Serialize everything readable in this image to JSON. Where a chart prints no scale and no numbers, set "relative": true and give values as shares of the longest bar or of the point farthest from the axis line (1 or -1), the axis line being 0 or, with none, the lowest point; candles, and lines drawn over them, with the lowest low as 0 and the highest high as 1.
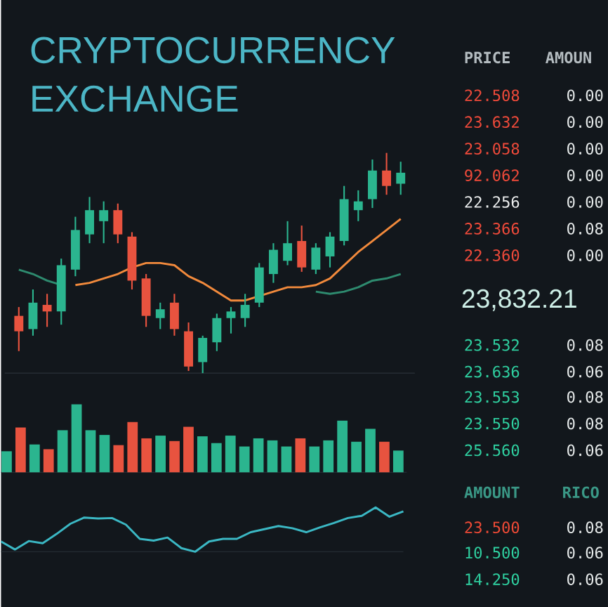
{
  "chart_data": [
    {
      "type": "candlestick",
      "title": "CRYPTOCURRENCY EXCHANGE",
      "relative": true,
      "categories": [
        null,
        null,
        null,
        null,
        null,
        null,
        null,
        null,
        null,
        null,
        null,
        null,
        null,
        null,
        null,
        null,
        null,
        null,
        null,
        null,
        null,
        null,
        null,
        null,
        null,
        null,
        null,
        null
      ],
      "ohlc": [
        [
          0.26,
          0.3,
          0.1,
          0.19
        ],
        [
          0.2,
          0.38,
          0.17,
          0.32
        ],
        [
          0.31,
          0.36,
          0.21,
          0.28
        ],
        [
          0.28,
          0.52,
          0.22,
          0.49
        ],
        [
          0.47,
          0.71,
          0.44,
          0.65
        ],
        [
          0.63,
          0.8,
          0.59,
          0.74
        ],
        [
          0.69,
          0.78,
          0.59,
          0.74
        ],
        [
          0.74,
          0.77,
          0.59,
          0.63
        ],
        [
          0.62,
          0.64,
          0.38,
          0.42
        ],
        [
          0.43,
          0.45,
          0.21,
          0.26
        ],
        [
          0.25,
          0.32,
          0.2,
          0.29
        ],
        [
          0.32,
          0.36,
          0.17,
          0.2
        ],
        [
          0.19,
          0.23,
          0.01,
          0.03
        ],
        [
          0.05,
          0.17,
          0.0,
          0.16
        ],
        [
          0.14,
          0.27,
          0.1,
          0.25
        ],
        [
          0.25,
          0.3,
          0.18,
          0.28
        ],
        [
          0.25,
          0.36,
          0.21,
          0.31
        ],
        [
          0.32,
          0.5,
          0.3,
          0.48
        ],
        [
          0.45,
          0.59,
          0.41,
          0.56
        ],
        [
          0.51,
          0.69,
          0.49,
          0.59
        ],
        [
          0.6,
          0.67,
          0.46,
          0.48
        ],
        [
          0.47,
          0.59,
          0.45,
          0.57
        ],
        [
          0.53,
          0.64,
          0.48,
          0.62
        ],
        [
          0.6,
          0.85,
          0.58,
          0.79
        ],
        [
          0.74,
          0.83,
          0.69,
          0.78
        ],
        [
          0.79,
          0.97,
          0.75,
          0.92
        ],
        [
          0.92,
          1.0,
          0.81,
          0.85
        ],
        [
          0.86,
          0.96,
          0.81,
          0.91
        ]
      ],
      "colors": [
        "#e8533f",
        "#2bb58f",
        "#e8533f",
        "#2bb58f",
        "#2bb58f",
        "#2bb58f",
        "#2bb58f",
        "#e8533f",
        "#e8533f",
        "#e8533f",
        "#2bb58f",
        "#e8533f",
        "#e8533f",
        "#2bb58f",
        "#2bb58f",
        "#2bb58f",
        "#2bb58f",
        "#2bb58f",
        "#2bb58f",
        "#2bb58f",
        "#e8533f",
        "#2bb58f",
        "#2bb58f",
        "#2bb58f",
        "#2bb58f",
        "#2bb58f",
        "#e8533f",
        "#2bb58f"
      ],
      "series": [
        {
          "type": "line",
          "color": "#2e8b6f",
          "values": [
            0.47,
            0.45,
            0.42,
            0.4,
            null,
            null,
            null,
            null,
            null,
            null,
            null,
            null,
            null,
            null,
            null,
            null,
            null,
            null,
            null,
            null,
            null,
            0.37,
            0.36,
            0.37,
            0.39,
            0.42,
            0.43,
            0.45
          ]
        },
        {
          "type": "line",
          "color": "#f28a3c",
          "values": [
            null,
            null,
            null,
            null,
            0.4,
            0.41,
            0.43,
            0.45,
            0.48,
            0.5,
            0.5,
            0.49,
            0.44,
            0.41,
            0.37,
            0.33,
            0.33,
            0.35,
            0.37,
            0.39,
            0.39,
            0.4,
            0.43,
            0.49,
            0.55,
            0.6,
            0.65,
            0.7
          ]
        }
      ]
    },
    {
      "type": "bar",
      "relative": true,
      "categories": [
        null,
        null,
        null,
        null,
        null,
        null,
        null,
        null,
        null,
        null,
        null,
        null,
        null,
        null,
        null,
        null,
        null,
        null,
        null,
        null,
        null,
        null,
        null,
        null,
        null,
        null,
        null,
        null,
        null
      ],
      "values": [
        0.31,
        0.66,
        0.41,
        0.34,
        0.62,
        1,
        0.62,
        0.55,
        0.4,
        0.74,
        0.5,
        0.54,
        0.46,
        0.67,
        0.53,
        0.43,
        0.54,
        0.38,
        0.5,
        0.47,
        0.38,
        0.5,
        0.38,
        0.47,
        0.76,
        0.45,
        0.64,
        0.45,
        0.32
      ],
      "colors": [
        "#2bb58f",
        "#e8533f",
        "#2bb58f",
        "#e8533f",
        "#2bb58f",
        "#2bb58f",
        "#2bb58f",
        "#2bb58f",
        "#e8533f",
        "#e8533f",
        "#e8533f",
        "#2bb58f",
        "#e8533f",
        "#e8533f",
        "#2bb58f",
        "#2bb58f",
        "#2bb58f",
        "#2bb58f",
        "#2bb58f",
        "#2bb58f",
        "#2bb58f",
        "#e8533f",
        "#2bb58f",
        "#2bb58f",
        "#2bb58f",
        "#2bb58f",
        "#2bb58f",
        "#e8533f",
        "#2bb58f"
      ]
    },
    {
      "type": "line",
      "relative": true,
      "color": "#3bb8c4",
      "categories": [
        null,
        null,
        null,
        null,
        null,
        null,
        null,
        null,
        null,
        null,
        null,
        null,
        null,
        null,
        null,
        null,
        null,
        null,
        null,
        null,
        null,
        null,
        null,
        null,
        null,
        null,
        null,
        null,
        null,
        null
      ],
      "values": [
        0.23,
        0.05,
        0.24,
        0.19,
        0.4,
        0.63,
        0.77,
        0.75,
        0.76,
        0.61,
        0.29,
        0.25,
        0.32,
        0.08,
        0,
        0.23,
        0.29,
        0.29,
        0.44,
        0.51,
        0.58,
        0.53,
        0.44,
        0.55,
        0.65,
        0.76,
        0.81,
        1,
        0.79,
        0.91
      ]
    },
    {
      "type": "other",
      "annotations": [
        "PRICE",
        "AMOUN",
        "22.508",
        "0.00",
        "23.632",
        "0.00",
        "23.058",
        "0.00",
        "92.062",
        "0.00",
        "22.256",
        "0.00",
        "23.366",
        "0.08",
        "22.360",
        "0.00",
        "23,832.21",
        "23.532",
        "0.08",
        "23.636",
        "0.06",
        "23.553",
        "0.08",
        "23.550",
        "0.08",
        "25.560",
        "0.06",
        "AMOUNT",
        "RICO",
        "23.500",
        "0.08",
        "10.500",
        "0.06",
        "14.250",
        "0.06"
      ],
      "colors": [
        "#b4bcc0",
        "#b4bcc0",
        "#ef4a3a",
        "#e6eaea",
        "#ef4a3a",
        "#e6eaea",
        "#ef4a3a",
        "#e6eaea",
        "#ef4a3a",
        "#e6eaea",
        "#eef0f0",
        "#e6eaea",
        "#ef4a3a",
        "#e6eaea",
        "#ef4a3a",
        "#e6eaea",
        "#cdeee6",
        "#2fd0a0",
        "#e6eaea",
        "#2fd0a0",
        "#e6eaea",
        "#2fd0a0",
        "#e6eaea",
        "#2fd0a0",
        "#e6eaea",
        "#2fd0a0",
        "#e6eaea",
        "#3a9886",
        "#3a9886",
        "#ee4a36",
        "#e6eaea",
        "#2fd0a0",
        "#e6eaea",
        "#2fd0a0",
        "#e6eaea"
      ]
    }
  ]
}
